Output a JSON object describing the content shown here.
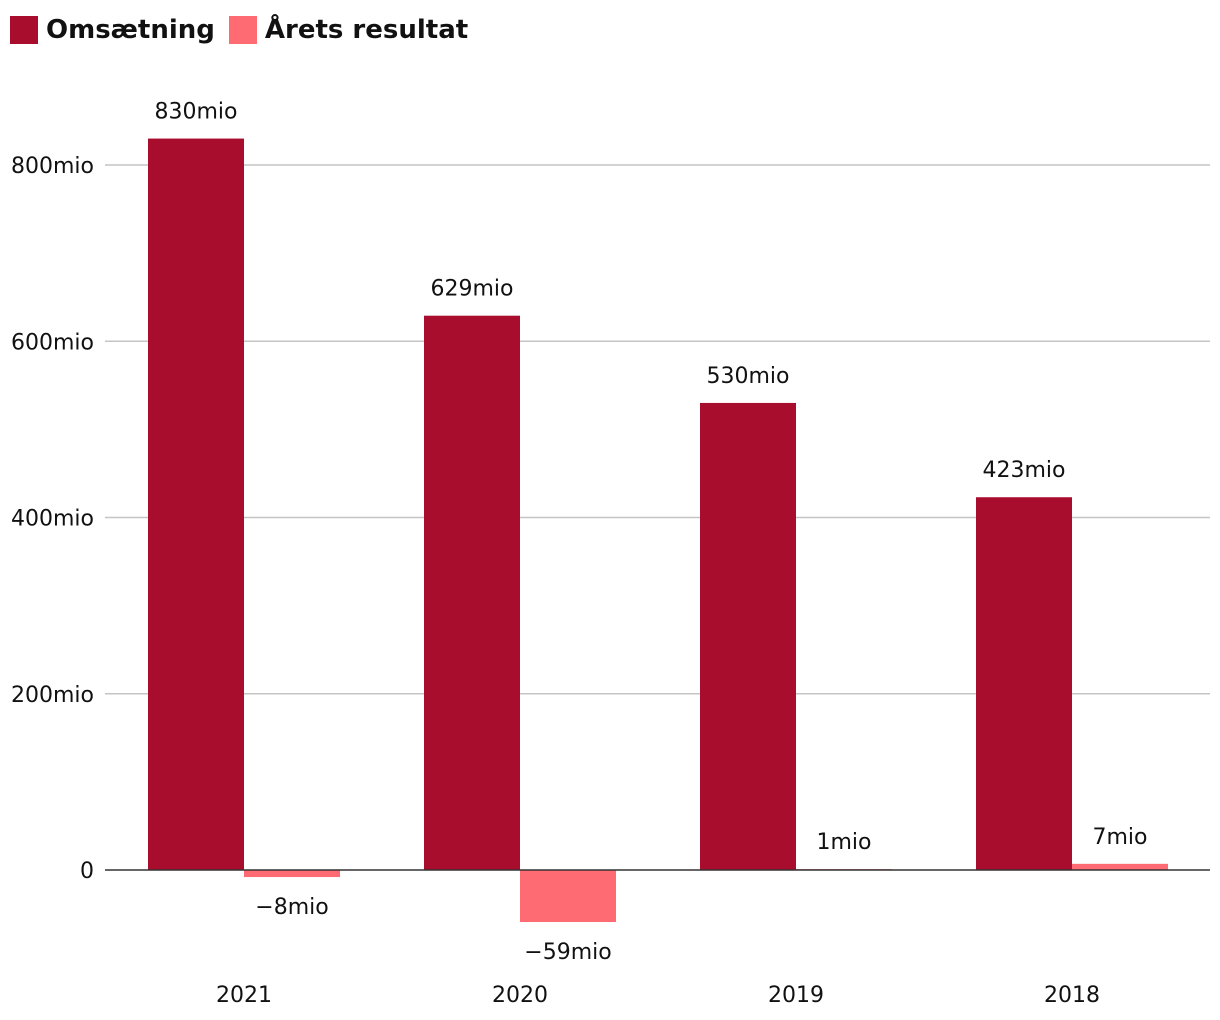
{
  "chart_data": {
    "type": "bar",
    "categories": [
      "2021",
      "2020",
      "2019",
      "2018"
    ],
    "series": [
      {
        "name": "Omsætning",
        "values": [
          830,
          629,
          530,
          423
        ],
        "labels": [
          "830mio",
          "629mio",
          "530mio",
          "423mio"
        ],
        "color": "#a80d2e"
      },
      {
        "name": "Årets resultat",
        "values": [
          -8,
          -59,
          1,
          7
        ],
        "labels": [
          "−8mio",
          "−59mio",
          "1mio",
          "7mio"
        ],
        "color": "#ff6b72"
      }
    ],
    "yticks": [
      0,
      200,
      400,
      600,
      800
    ],
    "ytick_labels": [
      "0",
      "200mio",
      "400mio",
      "600mio",
      "800mio"
    ],
    "ylim": [
      -120,
      1000
    ],
    "grid": true,
    "legend_position": "top-left",
    "title": "",
    "xlabel": "",
    "ylabel": ""
  }
}
